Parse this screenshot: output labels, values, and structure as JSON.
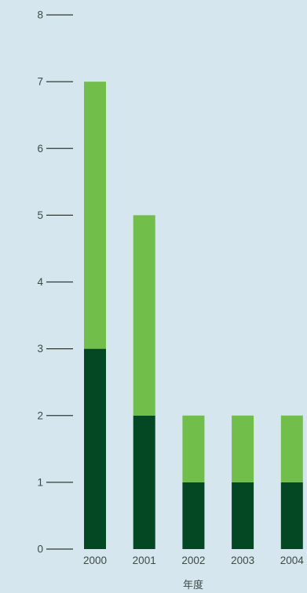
{
  "colors": {
    "background": "#d6e6ee",
    "axis": "#2f3a33",
    "text": "#3d4a44",
    "series_bottom": "#034723",
    "series_top": "#72be4a"
  },
  "chart_data": {
    "type": "bar",
    "stacked": true,
    "categories": [
      "2000",
      "2001",
      "2002",
      "2003",
      "2004"
    ],
    "series": [
      {
        "values": [
          3,
          2,
          1,
          1,
          1
        ],
        "color": "#034723"
      },
      {
        "values": [
          4,
          3,
          1,
          1,
          1
        ],
        "color": "#72be4a"
      }
    ],
    "xlabel": "年度",
    "ylabel": "",
    "ylim": [
      0,
      8
    ],
    "yticks": [
      0,
      1,
      2,
      3,
      4,
      5,
      6,
      7,
      8
    ],
    "grid": false,
    "legend": "none"
  }
}
